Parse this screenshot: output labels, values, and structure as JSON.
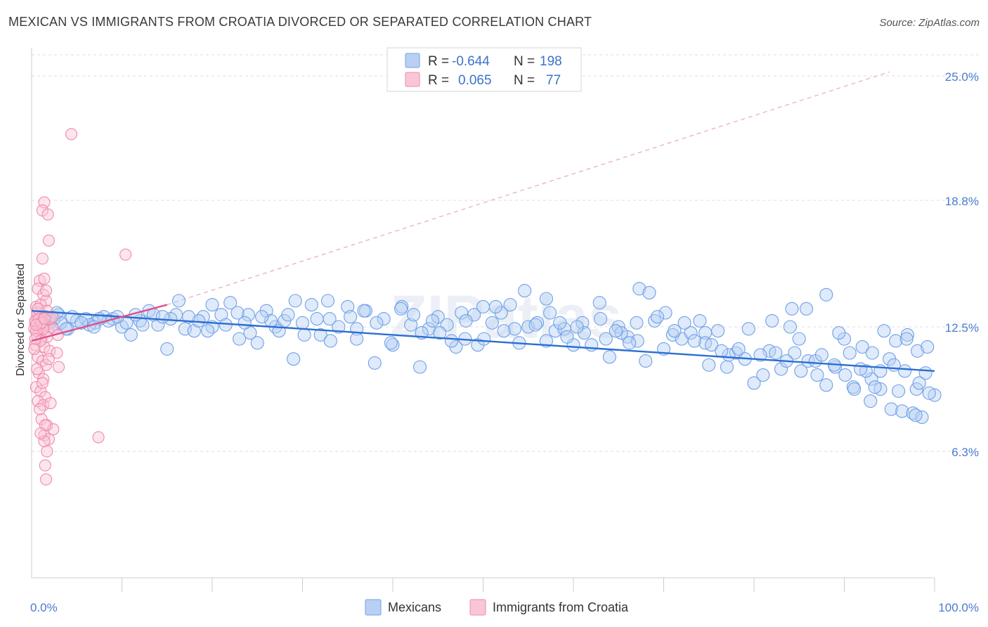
{
  "title": "MEXICAN VS IMMIGRANTS FROM CROATIA DIVORCED OR SEPARATED CORRELATION CHART",
  "source": "Source: ZipAtlas.com",
  "colors": {
    "blue": "#6fa0e8",
    "blue_line": "#2a6fd0",
    "pink": "#f08aaa",
    "pink_line": "#e0508a",
    "axis_text": "#4a7ccf"
  },
  "legend_top": {
    "rows": [
      {
        "r_label": "R =",
        "r_value": "-0.644",
        "n_label": "N =",
        "n_value": "198",
        "color": "blue"
      },
      {
        "r_label": "R =",
        "r_value": "0.065",
        "n_label": "N =",
        "n_value": "77",
        "color": "pink"
      }
    ]
  },
  "legend_bottom": [
    {
      "label": "Mexicans",
      "color": "blue"
    },
    {
      "label": "Immigrants from Croatia",
      "color": "pink"
    }
  ],
  "watermark": "ZIPatlas",
  "chart_data": {
    "type": "scatter",
    "ylabel": "Divorced or Separated",
    "x_tick_labels": [
      "0.0%",
      "100.0%"
    ],
    "y_tick_labels": [
      "25.0%",
      "18.8%",
      "12.5%",
      "6.3%"
    ],
    "y_ticks": [
      25.0,
      18.8,
      12.5,
      6.3
    ],
    "xlim": [
      0,
      100
    ],
    "ylim": [
      0,
      26.4
    ],
    "grid": "horizontal dashed",
    "series": [
      {
        "name": "Mexicans",
        "color": "blue",
        "trend": {
          "x": [
            0,
            100
          ],
          "y": [
            13.3,
            10.3
          ]
        },
        "points": [
          [
            1.0,
            12.6
          ],
          [
            1.5,
            13.0
          ],
          [
            2.0,
            12.7
          ],
          [
            2.5,
            12.9
          ],
          [
            3.0,
            13.1
          ],
          [
            4.0,
            12.4
          ],
          [
            5.0,
            12.8
          ],
          [
            6.0,
            12.9
          ],
          [
            7.0,
            12.7
          ],
          [
            8.0,
            13.0
          ],
          [
            9.0,
            12.9
          ],
          [
            10.0,
            12.5
          ],
          [
            11.0,
            12.1
          ],
          [
            12.0,
            12.8
          ],
          [
            13.0,
            13.3
          ],
          [
            14.0,
            12.6
          ],
          [
            15.0,
            11.4
          ],
          [
            16.0,
            13.1
          ],
          [
            17.0,
            12.4
          ],
          [
            18.0,
            12.3
          ],
          [
            19.0,
            13.0
          ],
          [
            20.0,
            12.5
          ],
          [
            21.0,
            13.1
          ],
          [
            22.0,
            13.7
          ],
          [
            23.0,
            11.9
          ],
          [
            24.0,
            13.1
          ],
          [
            25.0,
            11.7
          ],
          [
            26.0,
            13.3
          ],
          [
            27.0,
            12.5
          ],
          [
            28.0,
            12.8
          ],
          [
            29.0,
            10.9
          ],
          [
            30.0,
            12.7
          ],
          [
            31.0,
            13.6
          ],
          [
            32.0,
            12.1
          ],
          [
            33.0,
            12.9
          ],
          [
            34.0,
            12.5
          ],
          [
            35.0,
            13.5
          ],
          [
            36.0,
            12.4
          ],
          [
            37.0,
            13.3
          ],
          [
            38.0,
            10.7
          ],
          [
            39.0,
            12.9
          ],
          [
            40.0,
            11.6
          ],
          [
            41.0,
            13.5
          ],
          [
            42.0,
            12.6
          ],
          [
            43.0,
            10.5
          ],
          [
            44.0,
            12.4
          ],
          [
            45.0,
            13.0
          ],
          [
            46.0,
            12.6
          ],
          [
            47.0,
            11.5
          ],
          [
            48.0,
            11.9
          ],
          [
            49.0,
            13.1
          ],
          [
            50.0,
            13.5
          ],
          [
            51.0,
            12.7
          ],
          [
            52.0,
            13.2
          ],
          [
            53.0,
            13.6
          ],
          [
            54.0,
            11.7
          ],
          [
            55.0,
            12.5
          ],
          [
            56.0,
            12.7
          ],
          [
            57.0,
            13.9
          ],
          [
            58.0,
            12.3
          ],
          [
            59.0,
            12.4
          ],
          [
            60.0,
            11.6
          ],
          [
            61.0,
            12.7
          ],
          [
            62.0,
            11.6
          ],
          [
            63.0,
            12.9
          ],
          [
            64.0,
            11.0
          ],
          [
            65.0,
            12.5
          ],
          [
            66.0,
            12.0
          ],
          [
            67.0,
            12.7
          ],
          [
            68.0,
            10.8
          ],
          [
            69.0,
            12.8
          ],
          [
            70.0,
            11.4
          ],
          [
            71.0,
            12.1
          ],
          [
            72.0,
            11.9
          ],
          [
            73.0,
            12.2
          ],
          [
            74.0,
            12.8
          ],
          [
            75.0,
            10.6
          ],
          [
            76.0,
            12.3
          ],
          [
            77.0,
            10.5
          ],
          [
            78.0,
            11.2
          ],
          [
            79.0,
            10.9
          ],
          [
            80.0,
            9.7
          ],
          [
            81.0,
            10.1
          ],
          [
            82.0,
            12.8
          ],
          [
            83.0,
            10.4
          ],
          [
            84.0,
            12.5
          ],
          [
            85.0,
            11.9
          ],
          [
            86.0,
            10.8
          ],
          [
            87.0,
            10.1
          ],
          [
            88.0,
            9.6
          ],
          [
            89.0,
            10.5
          ],
          [
            90.0,
            11.9
          ],
          [
            91.0,
            9.5
          ],
          [
            92.0,
            11.5
          ],
          [
            93.0,
            9.9
          ],
          [
            94.0,
            9.4
          ],
          [
            95.0,
            10.9
          ],
          [
            96.0,
            9.3
          ],
          [
            97.0,
            12.1
          ],
          [
            98.0,
            9.4
          ],
          [
            99.0,
            10.2
          ],
          [
            100.0,
            9.1
          ],
          [
            16.3,
            13.8
          ],
          [
            20.0,
            13.6
          ],
          [
            22.8,
            13.2
          ],
          [
            26.5,
            12.8
          ],
          [
            29.2,
            13.8
          ],
          [
            32.8,
            13.8
          ],
          [
            36.8,
            13.3
          ],
          [
            40.9,
            13.4
          ],
          [
            44.4,
            12.8
          ],
          [
            47.6,
            13.2
          ],
          [
            51.4,
            13.5
          ],
          [
            54.6,
            14.3
          ],
          [
            57.4,
            13.2
          ],
          [
            62.9,
            13.7
          ],
          [
            67.3,
            14.4
          ],
          [
            70.2,
            13.2
          ],
          [
            72.3,
            12.7
          ],
          [
            74.6,
            12.2
          ],
          [
            77.2,
            11.1
          ],
          [
            79.4,
            12.4
          ],
          [
            81.7,
            11.3
          ],
          [
            84.5,
            11.2
          ],
          [
            86.8,
            10.8
          ],
          [
            89.4,
            12.2
          ],
          [
            90.6,
            11.2
          ],
          [
            92.4,
            10.3
          ],
          [
            93.4,
            9.5
          ],
          [
            94.4,
            12.3
          ],
          [
            95.7,
            11.8
          ],
          [
            96.9,
            11.9
          ],
          [
            98.1,
            11.3
          ],
          [
            99.2,
            11.5
          ],
          [
            68.4,
            14.2
          ],
          [
            84.2,
            13.4
          ],
          [
            88.0,
            14.1
          ],
          [
            85.8,
            13.4
          ],
          [
            91.1,
            9.4
          ],
          [
            92.9,
            8.8
          ],
          [
            95.2,
            8.4
          ],
          [
            96.4,
            8.3
          ],
          [
            97.6,
            8.2
          ],
          [
            98.6,
            8.0
          ],
          [
            99.4,
            9.2
          ],
          [
            97.9,
            8.1
          ],
          [
            74.6,
            11.7
          ],
          [
            69.3,
            13.0
          ],
          [
            59.3,
            12.0
          ],
          [
            57.0,
            11.8
          ],
          [
            53.5,
            12.4
          ],
          [
            49.4,
            11.6
          ],
          [
            46.5,
            11.8
          ],
          [
            43.2,
            12.2
          ],
          [
            39.8,
            11.7
          ],
          [
            36.0,
            11.9
          ],
          [
            33.1,
            11.8
          ],
          [
            30.2,
            12.1
          ],
          [
            27.4,
            12.3
          ],
          [
            24.2,
            12.2
          ],
          [
            21.5,
            12.6
          ],
          [
            18.5,
            12.8
          ],
          [
            15.4,
            12.9
          ],
          [
            12.3,
            12.6
          ],
          [
            8.5,
            12.8
          ],
          [
            6.4,
            12.6
          ],
          [
            3.2,
            12.7
          ],
          [
            2.2,
            12.5
          ],
          [
            1.5,
            12.9
          ],
          [
            4.5,
            13.0
          ],
          [
            5.5,
            12.7
          ],
          [
            7.5,
            12.9
          ],
          [
            10.5,
            12.7
          ],
          [
            13.5,
            13.1
          ],
          [
            55.8,
            12.6
          ],
          [
            58.5,
            12.7
          ],
          [
            61.2,
            12.2
          ],
          [
            63.6,
            11.9
          ],
          [
            65.3,
            12.2
          ],
          [
            67.1,
            11.8
          ],
          [
            71.2,
            12.3
          ],
          [
            73.4,
            11.8
          ],
          [
            75.3,
            11.6
          ],
          [
            76.4,
            11.3
          ],
          [
            78.3,
            11.4
          ],
          [
            80.7,
            11.1
          ],
          [
            82.4,
            11.2
          ],
          [
            83.6,
            10.8
          ],
          [
            85.2,
            10.3
          ],
          [
            87.5,
            11.1
          ],
          [
            88.9,
            10.6
          ],
          [
            90.1,
            10.1
          ],
          [
            91.8,
            10.4
          ],
          [
            93.1,
            11.2
          ],
          [
            94.0,
            10.3
          ],
          [
            95.5,
            10.6
          ],
          [
            96.7,
            10.3
          ],
          [
            98.3,
            9.7
          ],
          [
            50.1,
            11.9
          ],
          [
            52.3,
            12.3
          ],
          [
            48.1,
            12.8
          ],
          [
            45.2,
            12.2
          ],
          [
            42.3,
            13.1
          ],
          [
            38.2,
            12.7
          ],
          [
            35.3,
            13.0
          ],
          [
            31.6,
            12.9
          ],
          [
            28.4,
            13.1
          ],
          [
            25.5,
            13.0
          ],
          [
            23.6,
            12.7
          ],
          [
            19.5,
            12.3
          ],
          [
            17.4,
            13.0
          ],
          [
            14.5,
            13.0
          ],
          [
            11.5,
            13.1
          ],
          [
            9.5,
            13.0
          ],
          [
            2.8,
            13.2
          ],
          [
            3.8,
            12.4
          ],
          [
            6.9,
            12.5
          ],
          [
            60.4,
            12.5
          ],
          [
            64.7,
            12.3
          ],
          [
            66.2,
            11.7
          ]
        ]
      },
      {
        "name": "Immigrants from Croatia",
        "color": "pink",
        "trend": {
          "x": [
            0,
            15
          ],
          "y": [
            11.8,
            13.6
          ]
        },
        "trend_extension": {
          "x": [
            15,
            95
          ],
          "y": [
            13.6,
            25.2
          ]
        },
        "points": [
          [
            4.4,
            22.1
          ],
          [
            1.4,
            18.7
          ],
          [
            1.2,
            18.3
          ],
          [
            1.8,
            18.1
          ],
          [
            1.9,
            16.8
          ],
          [
            10.4,
            16.1
          ],
          [
            1.2,
            15.9
          ],
          [
            0.9,
            14.8
          ],
          [
            1.4,
            14.9
          ],
          [
            0.7,
            14.4
          ],
          [
            1.3,
            14.1
          ],
          [
            1.6,
            13.8
          ],
          [
            0.5,
            13.5
          ],
          [
            1.0,
            13.6
          ],
          [
            1.7,
            13.3
          ],
          [
            0.6,
            13.0
          ],
          [
            1.2,
            12.8
          ],
          [
            0.4,
            12.7
          ],
          [
            0.8,
            12.5
          ],
          [
            1.5,
            12.6
          ],
          [
            0.3,
            12.4
          ],
          [
            0.9,
            12.2
          ],
          [
            1.8,
            12.3
          ],
          [
            2.4,
            12.4
          ],
          [
            0.6,
            12.1
          ],
          [
            1.1,
            11.9
          ],
          [
            0.4,
            11.6
          ],
          [
            1.4,
            11.5
          ],
          [
            2.0,
            11.3
          ],
          [
            2.8,
            11.2
          ],
          [
            0.7,
            11.0
          ],
          [
            1.2,
            10.8
          ],
          [
            1.6,
            10.6
          ],
          [
            3.0,
            10.5
          ],
          [
            0.8,
            10.2
          ],
          [
            1.3,
            9.9
          ],
          [
            0.5,
            9.5
          ],
          [
            1.0,
            9.3
          ],
          [
            1.5,
            9.0
          ],
          [
            0.7,
            8.8
          ],
          [
            1.3,
            8.6
          ],
          [
            1.1,
            7.9
          ],
          [
            1.7,
            7.6
          ],
          [
            2.4,
            7.4
          ],
          [
            1.4,
            7.1
          ],
          [
            1.9,
            6.9
          ],
          [
            7.4,
            7.0
          ],
          [
            1.4,
            6.8
          ],
          [
            1.7,
            6.3
          ],
          [
            1.5,
            5.6
          ],
          [
            1.6,
            4.9
          ],
          [
            0.6,
            13.2
          ],
          [
            1.4,
            13.0
          ],
          [
            2.1,
            12.9
          ],
          [
            0.9,
            12.6
          ],
          [
            0.5,
            12.3
          ],
          [
            1.7,
            12.0
          ],
          [
            1.0,
            11.8
          ],
          [
            0.3,
            11.4
          ],
          [
            1.9,
            10.9
          ],
          [
            0.6,
            10.4
          ],
          [
            1.2,
            9.7
          ],
          [
            2.1,
            8.7
          ],
          [
            0.9,
            8.4
          ],
          [
            1.5,
            7.6
          ],
          [
            1.0,
            7.2
          ],
          [
            0.4,
            12.8
          ],
          [
            1.3,
            12.4
          ],
          [
            0.7,
            13.4
          ],
          [
            1.6,
            14.3
          ],
          [
            0.4,
            11.9
          ],
          [
            2.3,
            13.0
          ],
          [
            2.9,
            12.1
          ],
          [
            0.8,
            12.9
          ],
          [
            1.1,
            12.7
          ],
          [
            0.5,
            12.6
          ],
          [
            1.4,
            12.9
          ]
        ]
      }
    ]
  }
}
